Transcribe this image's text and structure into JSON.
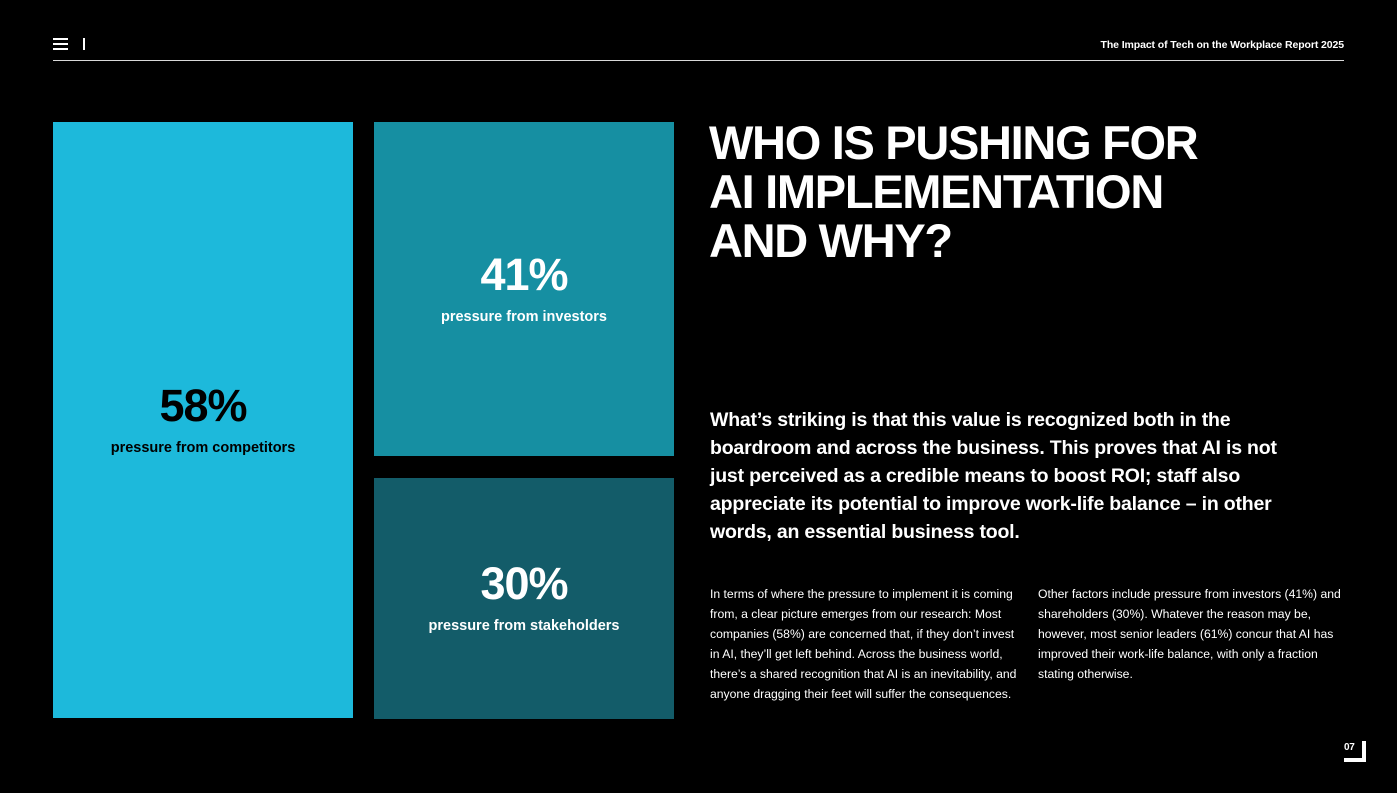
{
  "header": {
    "menu_icon": "hamburger-menu-icon",
    "report_title": "The Impact of Tech on the Workplace Report 2025"
  },
  "stats": [
    {
      "value": "58%",
      "label": "pressure from competitors",
      "color": "#1db9db"
    },
    {
      "value": "41%",
      "label": "pressure from investors",
      "color": "#168fa2"
    },
    {
      "value": "30%",
      "label": "pressure from stakeholders",
      "color": "#135c69"
    }
  ],
  "headline": {
    "lines": [
      "WHO IS PUSHING FOR",
      "AI IMPLEMENTATION",
      "AND WHY?"
    ]
  },
  "lead": "What’s striking is that this value is recognized both in the boardroom and across the business. This proves that AI is not just perceived as a credible means to boost ROI; staff also appreciate its potential to improve work-life balance – in other words, an essential business tool.",
  "body": [
    "In terms of where the pressure to implement it is coming from, a clear picture emerges from our research: Most companies (58%) are concerned that, if they don’t invest in AI, they’ll get left behind. Across the business world, there’s a shared recognition that AI is an inevitability, and anyone dragging their feet will suffer the consequences.",
    "Other factors include pressure from investors (41%) and shareholders (30%). Whatever the reason may be, however, most senior leaders (61%) concur that AI has improved their work-life balance, with only a fraction stating otherwise."
  ],
  "page_number": "07"
}
